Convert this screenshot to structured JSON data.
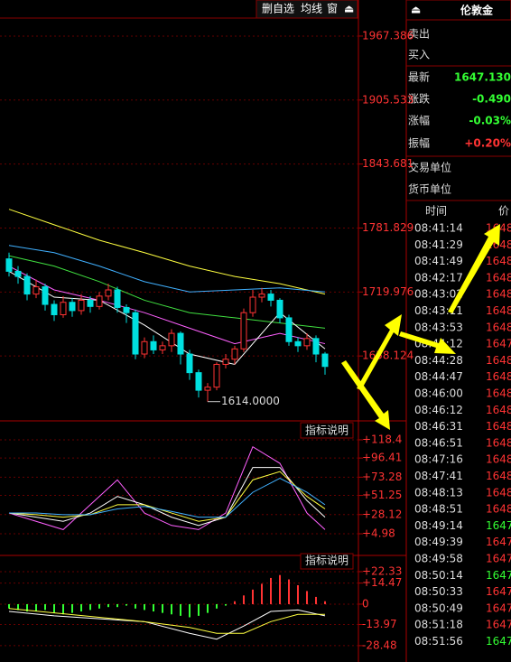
{
  "ui": {
    "toolbar": [
      "删自选",
      "均线",
      "窗"
    ],
    "instrument": "伦敦金",
    "indicator_note": [
      "指标说明",
      "指标说明"
    ],
    "quote": [
      {
        "label": "卖出"
      },
      {
        "label": "买入"
      },
      {
        "label": "最新",
        "value": "1647.130",
        "color": "#33ff33"
      },
      {
        "label": "涨跌",
        "value": "-0.490",
        "color": "#33ff33"
      },
      {
        "label": "涨幅",
        "value": "-0.03%",
        "color": "#33ff33"
      },
      {
        "label": "振幅",
        "value": "+0.20%",
        "color": "#ff3333"
      },
      {
        "label": "交易单位"
      },
      {
        "label": "货币单位"
      }
    ],
    "trades": {
      "header": [
        "时间",
        "价"
      ],
      "rows": [
        {
          "time": "08:41:14",
          "price": "1648",
          "color": "#ff3333"
        },
        {
          "time": "08:41:29",
          "price": "1648",
          "color": "#ff3333"
        },
        {
          "time": "08:41:49",
          "price": "1648",
          "color": "#ff3333"
        },
        {
          "time": "08:42:17",
          "price": "1648",
          "color": "#ff3333"
        },
        {
          "time": "08:43:02",
          "price": "1648",
          "color": "#ff3333"
        },
        {
          "time": "08:43:11",
          "price": "1648",
          "color": "#ff3333"
        },
        {
          "time": "08:43:53",
          "price": "1648",
          "color": "#ff3333"
        },
        {
          "time": "08:44:12",
          "price": "1647",
          "color": "#ff3333"
        },
        {
          "time": "08:44:28",
          "price": "1648",
          "color": "#ff3333"
        },
        {
          "time": "08:44:47",
          "price": "1648",
          "color": "#ff3333"
        },
        {
          "time": "08:46:00",
          "price": "1648",
          "color": "#ff3333"
        },
        {
          "time": "08:46:12",
          "price": "1648",
          "color": "#ff3333"
        },
        {
          "time": "08:46:31",
          "price": "1648",
          "color": "#ff3333"
        },
        {
          "time": "08:46:51",
          "price": "1648",
          "color": "#ff3333"
        },
        {
          "time": "08:47:16",
          "price": "1648",
          "color": "#ff3333"
        },
        {
          "time": "08:47:41",
          "price": "1648",
          "color": "#ff3333"
        },
        {
          "time": "08:48:13",
          "price": "1648",
          "color": "#ff3333"
        },
        {
          "time": "08:48:51",
          "price": "1648",
          "color": "#ff3333"
        },
        {
          "time": "08:49:14",
          "price": "1647",
          "color": "#33ff33"
        },
        {
          "time": "08:49:39",
          "price": "1647",
          "color": "#ff3333"
        },
        {
          "time": "08:49:58",
          "price": "1647",
          "color": "#ff3333"
        },
        {
          "time": "08:50:14",
          "price": "1647",
          "color": "#33ff33"
        },
        {
          "time": "08:50:33",
          "price": "1647",
          "color": "#ff3333"
        },
        {
          "time": "08:50:49",
          "price": "1647",
          "color": "#ff3333"
        },
        {
          "time": "08:51:18",
          "price": "1647",
          "color": "#ff3333"
        },
        {
          "time": "08:51:56",
          "price": "1647",
          "color": "#33ff33"
        }
      ]
    }
  },
  "chart_data": [
    {
      "type": "candlestick",
      "ylim": [
        1595.4,
        1984.8
      ],
      "yticks": [
        1967.386,
        1905.533,
        1843.681,
        1781.829,
        1719.976,
        1658.124
      ],
      "annotation": "1614.0000",
      "up_color": "#ff3333",
      "down_color": "#00e0e0",
      "open": [
        1752,
        1740,
        1735,
        1718,
        1725,
        1708,
        1698,
        1710,
        1702,
        1712,
        1706,
        1716,
        1722,
        1705,
        1700,
        1660,
        1672,
        1664,
        1668,
        1680,
        1660,
        1642,
        1625,
        1628,
        1650,
        1655,
        1665,
        1700,
        1715,
        1718,
        1712,
        1695,
        1672,
        1668,
        1675,
        1660
      ],
      "high": [
        1758,
        1745,
        1738,
        1732,
        1728,
        1712,
        1716,
        1714,
        1718,
        1716,
        1720,
        1728,
        1725,
        1708,
        1703,
        1676,
        1678,
        1672,
        1684,
        1682,
        1664,
        1645,
        1632,
        1652,
        1660,
        1668,
        1704,
        1722,
        1724,
        1722,
        1714,
        1698,
        1676,
        1680,
        1678,
        1662
      ],
      "low": [
        1735,
        1728,
        1712,
        1714,
        1702,
        1692,
        1695,
        1696,
        1698,
        1700,
        1703,
        1712,
        1700,
        1690,
        1655,
        1656,
        1660,
        1660,
        1662,
        1650,
        1635,
        1618,
        1614,
        1625,
        1646,
        1650,
        1662,
        1696,
        1710,
        1706,
        1690,
        1668,
        1662,
        1664,
        1652,
        1640
      ],
      "close": [
        1740,
        1735,
        1718,
        1725,
        1708,
        1698,
        1710,
        1702,
        1712,
        1706,
        1716,
        1722,
        1705,
        1700,
        1660,
        1672,
        1664,
        1668,
        1680,
        1660,
        1642,
        1625,
        1628,
        1650,
        1655,
        1665,
        1700,
        1715,
        1718,
        1712,
        1695,
        1672,
        1668,
        1675,
        1660,
        1648
      ],
      "series": [
        {
          "color": "#ffff40",
          "x": [
            0,
            5,
            10,
            15,
            20,
            25,
            30,
            35
          ],
          "values": [
            1800,
            1785,
            1770,
            1758,
            1745,
            1735,
            1728,
            1718
          ]
        },
        {
          "color": "#40b0ff",
          "x": [
            0,
            5,
            10,
            15,
            20,
            25,
            30,
            35
          ],
          "values": [
            1765,
            1758,
            1745,
            1730,
            1720,
            1722,
            1724,
            1720
          ]
        },
        {
          "color": "#40e040",
          "x": [
            0,
            5,
            10,
            15,
            20,
            25,
            30,
            35
          ],
          "values": [
            1755,
            1745,
            1730,
            1712,
            1700,
            1695,
            1690,
            1685
          ]
        },
        {
          "color": "#ff60ff",
          "x": [
            0,
            5,
            10,
            15,
            20,
            25,
            30,
            35
          ],
          "values": [
            1745,
            1722,
            1712,
            1700,
            1685,
            1670,
            1680,
            1670
          ]
        },
        {
          "color": "#ffffff",
          "x": [
            0,
            5,
            10,
            15,
            20,
            25,
            30,
            35
          ],
          "values": [
            1740,
            1715,
            1712,
            1688,
            1660,
            1650,
            1700,
            1665
          ]
        }
      ]
    },
    {
      "type": "line",
      "ylim": [
        -21.2,
        136.9
      ],
      "yticks": [
        {
          "value": 118.4,
          "label": "+118.4"
        },
        {
          "value": 96.41,
          "label": "+96.41"
        },
        {
          "value": 73.28,
          "label": "+73.28"
        },
        {
          "value": 51.25,
          "label": "+51.25"
        },
        {
          "value": 28.12,
          "label": "+28.12"
        },
        {
          "value": 4.98,
          "label": "+4.98"
        }
      ],
      "series": [
        {
          "color": "#ff60ff",
          "x": [
            0,
            3,
            6,
            9,
            12,
            15,
            18,
            21,
            24,
            27,
            30,
            33,
            35
          ],
          "values": [
            30,
            20,
            10,
            40,
            70,
            30,
            15,
            10,
            30,
            110,
            90,
            30,
            10
          ]
        },
        {
          "color": "#ffffff",
          "x": [
            0,
            3,
            6,
            9,
            12,
            15,
            18,
            21,
            24,
            27,
            30,
            33,
            35
          ],
          "values": [
            30,
            25,
            20,
            30,
            50,
            40,
            25,
            15,
            25,
            85,
            85,
            45,
            25
          ]
        },
        {
          "color": "#ffff40",
          "x": [
            0,
            3,
            6,
            9,
            12,
            15,
            18,
            21,
            24,
            27,
            30,
            33,
            35
          ],
          "values": [
            30,
            28,
            25,
            28,
            40,
            40,
            30,
            20,
            25,
            70,
            80,
            50,
            35
          ]
        },
        {
          "color": "#40b0ff",
          "x": [
            0,
            3,
            6,
            9,
            12,
            15,
            18,
            21,
            24,
            27,
            30,
            33,
            35
          ],
          "values": [
            30,
            30,
            28,
            28,
            35,
            38,
            32,
            25,
            25,
            55,
            72,
            55,
            40
          ]
        }
      ]
    },
    {
      "type": "bar",
      "ylim": [
        -39.7,
        31.6
      ],
      "yticks": [
        {
          "value": 22.33,
          "label": "+22.33"
        },
        {
          "value": 14.47,
          "label": "+14.47"
        },
        0,
        -13.97,
        -28.48
      ],
      "up_color": "#ff3333",
      "down_color": "#33ff33",
      "values": [
        -3,
        -4,
        -5,
        -5,
        -4,
        -6,
        -7,
        -6,
        -5,
        -4,
        -3,
        -2,
        -2,
        -1,
        -3,
        -4,
        -5,
        -6,
        -7,
        -8,
        -9,
        -8,
        -6,
        -3,
        -1,
        2,
        6,
        10,
        14,
        18,
        20,
        17,
        13,
        9,
        5,
        2
      ],
      "series": [
        {
          "color": "#ffffff",
          "x": [
            0,
            5,
            10,
            15,
            20,
            23,
            26,
            29,
            32,
            35
          ],
          "values": [
            -5,
            -8,
            -10,
            -12,
            -20,
            -24,
            -15,
            -5,
            -4,
            -8
          ]
        },
        {
          "color": "#ffff40",
          "x": [
            0,
            5,
            10,
            15,
            20,
            23,
            26,
            29,
            32,
            35
          ],
          "values": [
            -3,
            -6,
            -9,
            -12,
            -16,
            -20,
            -20,
            -12,
            -7,
            -7
          ]
        }
      ]
    }
  ]
}
